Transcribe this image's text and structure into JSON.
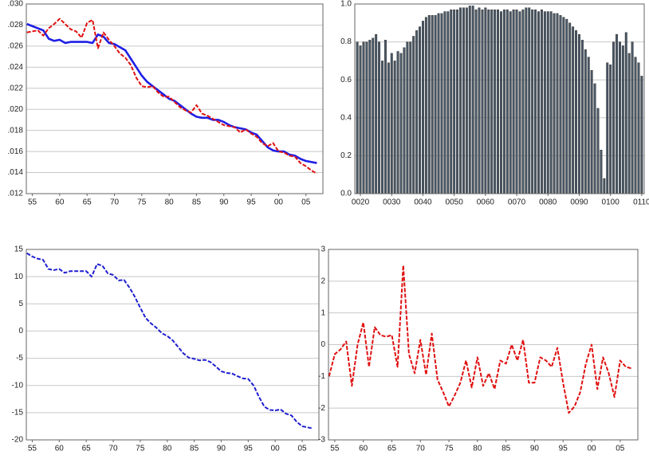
{
  "chart_data": [
    {
      "type": "line",
      "categories": [
        null,
        "55",
        null,
        null,
        null,
        null,
        "60",
        null,
        null,
        null,
        null,
        "65",
        null,
        null,
        null,
        null,
        "70",
        null,
        null,
        null,
        null,
        "75",
        null,
        null,
        null,
        null,
        "80",
        null,
        null,
        null,
        null,
        "85",
        null,
        null,
        null,
        null,
        "90",
        null,
        null,
        null,
        null,
        "95",
        null,
        null,
        null,
        null,
        "00",
        null,
        null,
        null,
        null,
        "05",
        null,
        null
      ],
      "series": [
        {
          "color": "#1f1fe6",
          "style": "solid",
          "values": [
            0.0281,
            0.0279,
            0.0277,
            0.0275,
            0.0267,
            0.0265,
            0.0266,
            0.0263,
            0.0264,
            0.0264,
            0.0264,
            0.0264,
            0.0263,
            0.0271,
            0.0269,
            0.0263,
            0.0262,
            0.0259,
            0.0256,
            0.0248,
            0.024,
            0.0232,
            0.0226,
            0.0222,
            0.0218,
            0.0214,
            0.021,
            0.0208,
            0.0204,
            0.02,
            0.0196,
            0.0193,
            0.0192,
            0.0192,
            0.019,
            0.019,
            0.0188,
            0.0185,
            0.0183,
            0.0182,
            0.0181,
            0.0178,
            0.0176,
            0.017,
            0.0164,
            0.0161,
            0.016,
            0.016,
            0.0157,
            0.0156,
            0.0153,
            0.0151,
            0.015,
            0.0149
          ]
        },
        {
          "color": "#e01010",
          "style": "dashed",
          "values": [
            0.0273,
            0.0274,
            0.0275,
            0.027,
            0.0277,
            0.0281,
            0.0286,
            0.0281,
            0.0276,
            0.0274,
            0.0268,
            0.0282,
            0.0285,
            0.0258,
            0.0273,
            0.0266,
            0.026,
            0.0253,
            0.0249,
            0.0242,
            0.023,
            0.0222,
            0.0221,
            0.0222,
            0.0216,
            0.0212,
            0.0212,
            0.0207,
            0.0202,
            0.0199,
            0.0197,
            0.0204,
            0.0196,
            0.0194,
            0.0191,
            0.0188,
            0.0185,
            0.0184,
            0.0183,
            0.0178,
            0.0181,
            0.0177,
            0.0174,
            0.0168,
            0.0165,
            0.0168,
            0.016,
            0.0159,
            0.0156,
            0.0155,
            0.0149,
            0.0146,
            0.0142,
            0.0139
          ]
        }
      ],
      "ylim": [
        0.012,
        0.03
      ],
      "yticks": [
        {
          "value": 0.012,
          "label": ".012"
        },
        {
          "value": 0.014,
          "label": ".014"
        },
        {
          "value": 0.016,
          "label": ".016"
        },
        {
          "value": 0.018,
          "label": ".018"
        },
        {
          "value": 0.02,
          "label": ".020"
        },
        {
          "value": 0.022,
          "label": ".022"
        },
        {
          "value": 0.024,
          "label": ".024"
        },
        {
          "value": 0.026,
          "label": ".026"
        },
        {
          "value": 0.028,
          "label": ".028"
        },
        {
          "value": 0.03,
          "label": ".030"
        }
      ],
      "grid": true
    },
    {
      "type": "bar",
      "categories": [
        null,
        "0020",
        null,
        null,
        null,
        null,
        null,
        null,
        null,
        null,
        null,
        "0030",
        null,
        null,
        null,
        null,
        null,
        null,
        null,
        null,
        null,
        "0040",
        null,
        null,
        null,
        null,
        null,
        null,
        null,
        null,
        null,
        "0050",
        null,
        null,
        null,
        null,
        null,
        null,
        null,
        null,
        null,
        "0060",
        null,
        null,
        null,
        null,
        null,
        null,
        null,
        null,
        null,
        "0070",
        null,
        null,
        null,
        null,
        null,
        null,
        null,
        null,
        null,
        "0080",
        null,
        null,
        null,
        null,
        null,
        null,
        null,
        null,
        null,
        "0090",
        null,
        null,
        null,
        null,
        null,
        null,
        null,
        null,
        null,
        "0100",
        null,
        null,
        null,
        null,
        null,
        null,
        null,
        null,
        null,
        "0110"
      ],
      "color": "#4a5866",
      "values": [
        0.8,
        0.78,
        0.8,
        0.8,
        0.81,
        0.82,
        0.84,
        0.8,
        0.7,
        0.81,
        0.69,
        0.74,
        0.7,
        0.75,
        0.74,
        0.77,
        0.8,
        0.8,
        0.83,
        0.86,
        0.88,
        0.91,
        0.93,
        0.94,
        0.94,
        0.94,
        0.95,
        0.95,
        0.96,
        0.96,
        0.97,
        0.97,
        0.97,
        0.98,
        0.98,
        0.98,
        0.99,
        0.99,
        0.97,
        0.98,
        0.97,
        0.98,
        0.97,
        0.97,
        0.97,
        0.97,
        0.96,
        0.97,
        0.97,
        0.96,
        0.97,
        0.97,
        0.96,
        0.97,
        0.98,
        0.98,
        0.97,
        0.97,
        0.96,
        0.97,
        0.96,
        0.96,
        0.96,
        0.95,
        0.95,
        0.94,
        0.93,
        0.92,
        0.9,
        0.88,
        0.86,
        0.84,
        0.81,
        0.76,
        0.72,
        0.65,
        0.58,
        0.45,
        0.23,
        0.08,
        0.69,
        0.68,
        0.8,
        0.84,
        0.8,
        0.78,
        0.85,
        0.74,
        0.8,
        0.72,
        0.69,
        0.62
      ],
      "ylim": [
        0,
        1
      ],
      "yticks": [
        {
          "value": 0,
          "label": "0.0"
        },
        0.2,
        0.4,
        0.6,
        0.8,
        {
          "value": 1,
          "label": "1.0"
        }
      ],
      "grid": true
    },
    {
      "type": "line",
      "categories": [
        null,
        "55",
        null,
        null,
        null,
        null,
        "60",
        null,
        null,
        null,
        null,
        "65",
        null,
        null,
        null,
        null,
        "70",
        null,
        null,
        null,
        null,
        "75",
        null,
        null,
        null,
        null,
        "80",
        null,
        null,
        null,
        null,
        "85",
        null,
        null,
        null,
        null,
        "90",
        null,
        null,
        null,
        null,
        "95",
        null,
        null,
        null,
        null,
        "00",
        null,
        null,
        null,
        null,
        "05",
        null,
        null
      ],
      "series": [
        {
          "color": "#1f1fd0",
          "style": "dashed",
          "values": [
            14.3,
            13.7,
            13.3,
            13.1,
            11.4,
            11.2,
            11.4,
            10.7,
            11.0,
            11.0,
            11.0,
            11.0,
            10.0,
            12.3,
            12.0,
            10.6,
            10.3,
            9.3,
            9.4,
            8.0,
            6.3,
            4.3,
            2.4,
            1.4,
            0.6,
            -0.4,
            -0.9,
            -1.7,
            -2.9,
            -4.1,
            -4.9,
            -5.1,
            -5.4,
            -5.3,
            -5.7,
            -6.5,
            -7.4,
            -7.7,
            -7.8,
            -8.3,
            -8.7,
            -8.8,
            -10.0,
            -12.1,
            -13.9,
            -14.5,
            -14.6,
            -14.4,
            -15.2,
            -15.5,
            -16.7,
            -17.5,
            -17.7,
            -17.9
          ]
        }
      ],
      "ylim": [
        -20,
        15
      ],
      "yticks": [
        -20,
        -15,
        -10,
        -5,
        0,
        5,
        10,
        15
      ],
      "grid": true
    },
    {
      "type": "line",
      "categories": [
        null,
        "55",
        null,
        null,
        null,
        null,
        "60",
        null,
        null,
        null,
        null,
        "65",
        null,
        null,
        null,
        null,
        "70",
        null,
        null,
        null,
        null,
        "75",
        null,
        null,
        null,
        null,
        "80",
        null,
        null,
        null,
        null,
        "85",
        null,
        null,
        null,
        null,
        "90",
        null,
        null,
        null,
        null,
        "95",
        null,
        null,
        null,
        null,
        "00",
        null,
        null,
        null,
        null,
        "05",
        null,
        null
      ],
      "series": [
        {
          "color": "#e01010",
          "style": "dashed",
          "values": [
            -1.0,
            -0.3,
            -0.15,
            0.1,
            -1.3,
            0.0,
            0.7,
            -0.7,
            0.55,
            0.3,
            0.25,
            0.3,
            -0.7,
            2.5,
            -0.3,
            -0.9,
            0.15,
            -0.95,
            0.35,
            -1.1,
            -1.5,
            -1.95,
            -1.6,
            -1.2,
            -0.5,
            -1.35,
            -0.4,
            -1.3,
            -0.9,
            -1.4,
            -0.5,
            -0.6,
            0.0,
            -0.5,
            0.15,
            -1.2,
            -1.2,
            -0.4,
            -0.5,
            -0.7,
            -0.1,
            -1.2,
            -2.15,
            -1.95,
            -1.5,
            -0.6,
            0.0,
            -1.4,
            -0.4,
            -0.9,
            -1.65,
            -0.5,
            -0.7,
            -0.75
          ]
        }
      ],
      "ylim": [
        -3,
        3
      ],
      "yticks": [
        -3,
        -2,
        -1,
        0,
        1,
        2,
        3
      ],
      "grid": true
    }
  ]
}
